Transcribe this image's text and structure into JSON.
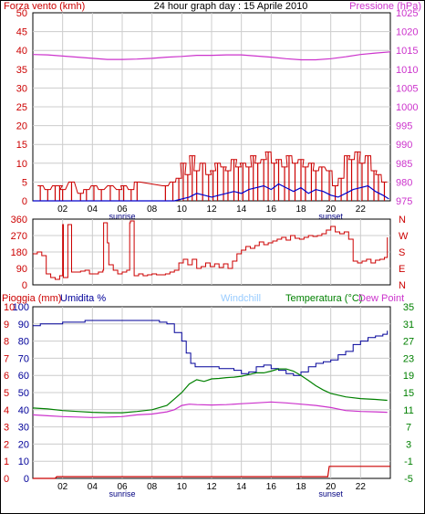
{
  "colors": {
    "frame": "#000000",
    "grid": "#cccccc",
    "wind": "#cc0000",
    "wind_avg": "#0000cc",
    "pressure": "#cc33cc",
    "direction": "#cc0000",
    "rain": "#cc0000",
    "humidity": "#000099",
    "windchill": "#99ccff",
    "temperature": "#008000",
    "dewpoint": "#cc33cc"
  },
  "header": {
    "wind_label": "Forza vento (kmh)",
    "title": "24 hour graph day : 15 Aprile 2010",
    "pressure_label": "Pressione (hPa)"
  },
  "bottom_header": {
    "rain_label": "Pioggia (mm)",
    "humidity_label": "Umidita %",
    "windchill_label": "Windchill",
    "temp_label": "Temperatura (°C)",
    "dew_label": "Dew Point"
  },
  "x_ticks": [
    "02",
    "04",
    "06",
    "08",
    "10",
    "12",
    "14",
    "16",
    "18",
    "20",
    "22"
  ],
  "sun_labels": {
    "sunrise": "sunrise",
    "sunset": "sunset"
  },
  "chart_data": [
    {
      "type": "line",
      "title": "24 hour graph day : 15 Aprile 2010",
      "xlabel": "",
      "x_unit": "hour",
      "xlim": [
        0,
        24
      ],
      "left_axis": {
        "label": "Forza vento (kmh)",
        "ylim": [
          0,
          50
        ],
        "ticks": [
          "0",
          "5",
          "10",
          "15",
          "20",
          "25",
          "30",
          "35",
          "40",
          "45",
          "50"
        ]
      },
      "right_axis": {
        "label": "Pressione (hPa)",
        "ylim": [
          975,
          1025
        ],
        "ticks": [
          "975",
          "980",
          "985",
          "990",
          "995",
          "1000",
          "1005",
          "1010",
          "1015",
          "1020",
          "1025"
        ]
      },
      "series": [
        {
          "name": "Forza vento (kmh)",
          "axis": "left",
          "style": "gust-bars",
          "x": [
            0.5,
            1.0,
            1.5,
            1.8,
            2.0,
            2.6,
            3.2,
            3.6,
            4.1,
            4.6,
            5.2,
            5.8,
            6.1,
            6.6,
            7.0,
            8.9,
            9.4,
            9.8,
            10.1,
            10.4,
            10.7,
            11.0,
            11.4,
            11.8,
            12.1,
            12.4,
            12.8,
            13.1,
            13.5,
            13.8,
            14.1,
            14.5,
            14.8,
            15.1,
            15.5,
            15.8,
            16.2,
            16.5,
            16.9,
            17.2,
            17.6,
            18.0,
            18.3,
            18.7,
            19.0,
            19.4,
            19.9,
            20.3,
            20.7,
            21.1,
            21.4,
            21.8,
            22.1,
            22.5,
            22.9,
            23.2,
            23.6
          ],
          "values": [
            4,
            3,
            4,
            4,
            3,
            5,
            2,
            3,
            4,
            3,
            4,
            3,
            4,
            3,
            5,
            4,
            5,
            6,
            10,
            7,
            12,
            8,
            10,
            7,
            8,
            10,
            9,
            8,
            11,
            9,
            10,
            9,
            12,
            10,
            11,
            13,
            10,
            11,
            9,
            12,
            10,
            11,
            9,
            10,
            8,
            9,
            8,
            4,
            6,
            12,
            11,
            13,
            10,
            12,
            8,
            7,
            5
          ]
        },
        {
          "name": "Vento medio",
          "axis": "left",
          "x": [
            0,
            2,
            4,
            6,
            8,
            9.5,
            10,
            10.5,
            11,
            11.5,
            12,
            12.5,
            13,
            13.5,
            14,
            14.5,
            15,
            15.5,
            16,
            16.5,
            17,
            17.5,
            18,
            18.5,
            19,
            19.5,
            20,
            20.5,
            21,
            21.5,
            22,
            22.5,
            23,
            23.5,
            23.9
          ],
          "values": [
            0,
            0,
            0,
            0,
            0,
            0,
            0.5,
            1,
            2,
            1.5,
            1,
            1.5,
            2,
            2.5,
            2,
            3,
            3.5,
            4,
            3,
            4.5,
            3.5,
            2.5,
            3.5,
            2,
            3,
            2.5,
            1.5,
            1,
            2,
            3,
            3.5,
            4,
            2.5,
            1.5,
            0.5
          ]
        },
        {
          "name": "Pressione (hPa)",
          "axis": "right",
          "x": [
            0,
            1,
            2,
            3,
            4,
            5,
            6,
            7,
            8,
            9,
            10,
            11,
            12,
            13,
            14,
            15,
            16,
            17,
            18,
            19,
            20,
            21,
            22,
            23,
            24
          ],
          "values": [
            1013.9,
            1013.8,
            1013.5,
            1013.2,
            1012.9,
            1012.6,
            1012.6,
            1012.7,
            1012.9,
            1013.2,
            1013.4,
            1013.7,
            1013.7,
            1013.8,
            1013.8,
            1013.5,
            1013.2,
            1012.8,
            1012.5,
            1012.5,
            1012.8,
            1013.3,
            1013.9,
            1014.3,
            1014.6
          ]
        }
      ]
    },
    {
      "type": "line",
      "xlim": [
        0,
        24
      ],
      "left_axis": {
        "ylim": [
          0,
          360
        ],
        "ticks": [
          "0",
          "90",
          "180",
          "270",
          "360"
        ]
      },
      "right_axis": {
        "ticks": [
          "N",
          "E",
          "S",
          "W",
          "N"
        ]
      },
      "series": [
        {
          "name": "Direzione vento",
          "x": [
            0,
            0.3,
            0.6,
            0.9,
            1.2,
            1.5,
            1.8,
            2.0,
            2.05,
            2.3,
            2.35,
            2.6,
            2.9,
            3.2,
            3.5,
            3.8,
            4.1,
            4.4,
            4.7,
            4.75,
            5.0,
            5.1,
            5.4,
            5.7,
            6.0,
            6.3,
            6.5,
            6.55,
            6.8,
            7.1,
            7.4,
            7.7,
            8.0,
            8.3,
            8.6,
            8.9,
            9.2,
            9.5,
            9.8,
            10.1,
            10.4,
            10.7,
            11.0,
            11.3,
            11.6,
            11.9,
            12.2,
            12.5,
            12.8,
            13.1,
            13.4,
            13.7,
            14.0,
            14.3,
            14.6,
            14.9,
            15.2,
            15.5,
            15.8,
            16.1,
            16.4,
            16.7,
            17.0,
            17.3,
            17.6,
            17.9,
            18.2,
            18.5,
            18.8,
            19.1,
            19.4,
            19.7,
            20.0,
            20.3,
            20.6,
            20.9,
            21.2,
            21.5,
            21.8,
            22.1,
            22.4,
            22.7,
            23.0,
            23.3,
            23.6,
            23.8
          ],
          "values": [
            170,
            180,
            160,
            60,
            40,
            30,
            50,
            330,
            40,
            40,
            330,
            70,
            70,
            75,
            80,
            60,
            60,
            70,
            80,
            340,
            230,
            110,
            80,
            60,
            70,
            80,
            340,
            350,
            50,
            60,
            50,
            55,
            60,
            55,
            55,
            60,
            70,
            80,
            120,
            140,
            110,
            140,
            90,
            100,
            120,
            100,
            115,
            95,
            115,
            90,
            130,
            170,
            190,
            210,
            200,
            215,
            235,
            220,
            230,
            240,
            250,
            260,
            245,
            270,
            255,
            250,
            260,
            270,
            265,
            270,
            280,
            300,
            320,
            290,
            280,
            290,
            250,
            130,
            120,
            130,
            140,
            120,
            135,
            140,
            150,
            260
          ]
        }
      ]
    },
    {
      "type": "line",
      "xlim": [
        0,
        24
      ],
      "left_axis": {
        "label": "Pioggia (mm)",
        "ylim": [
          0,
          10
        ],
        "ticks": [
          "0",
          "1",
          "2",
          "3",
          "4",
          "5",
          "6",
          "7",
          "8",
          "9",
          "10"
        ]
      },
      "left_axis_2": {
        "label": "Umidita %",
        "ylim": [
          0,
          100
        ],
        "ticks": [
          "0",
          "10",
          "20",
          "30",
          "40",
          "50",
          "60",
          "70",
          "80",
          "90",
          "100"
        ]
      },
      "right_axis": {
        "label": "Temperatura (°C)",
        "ylim": [
          -5,
          35
        ],
        "ticks": [
          "-5",
          "-1",
          "3",
          "7",
          "11",
          "15",
          "19",
          "23",
          "27",
          "31",
          "35"
        ]
      },
      "series": [
        {
          "name": "Pioggia (mm)",
          "axis": "left",
          "x": [
            0,
            1.5,
            1.6,
            19.8,
            19.9,
            24
          ],
          "values": [
            0,
            0,
            0.1,
            0.1,
            0.7,
            0.7
          ]
        },
        {
          "name": "Umidita %",
          "axis": "left2",
          "x": [
            0,
            0.5,
            1,
            1.5,
            2,
            3,
            3.5,
            4,
            5,
            6,
            7,
            8,
            8.5,
            9,
            9.5,
            10,
            10.3,
            10.6,
            10.9,
            11.5,
            12,
            12.5,
            13,
            13.5,
            14,
            14.5,
            15,
            15.5,
            16,
            16.5,
            17,
            17.5,
            18,
            18.5,
            19,
            19.5,
            20,
            20.5,
            21,
            21.5,
            22,
            22.5,
            23,
            23.5,
            23.8
          ],
          "values": [
            89,
            90,
            90,
            90,
            91,
            91,
            92,
            92,
            92,
            92,
            92,
            92,
            91,
            90,
            85,
            80,
            73,
            67,
            65,
            65,
            65,
            64,
            64,
            63,
            61,
            62,
            65,
            66,
            64,
            63,
            61,
            60,
            62,
            65,
            67,
            68,
            69,
            72,
            74,
            78,
            80,
            82,
            83,
            84,
            86
          ]
        },
        {
          "name": "Temperatura (°C)",
          "axis": "right",
          "x": [
            0,
            1,
            2,
            3,
            4,
            5,
            6,
            7,
            8,
            9,
            9.5,
            10,
            10.5,
            11,
            11.5,
            12,
            12.5,
            13,
            13.5,
            14,
            14.5,
            15,
            15.5,
            16,
            16.5,
            17,
            17.5,
            18,
            18.5,
            19,
            19.5,
            20,
            21,
            22,
            23,
            23.8
          ],
          "values": [
            11.4,
            11.2,
            10.8,
            10.6,
            10.4,
            10.3,
            10.3,
            10.6,
            11,
            12,
            13.5,
            15,
            17,
            18,
            17.6,
            18.2,
            18.3,
            18.5,
            18.6,
            18.8,
            19.2,
            19.6,
            19.6,
            20,
            20.5,
            20.5,
            20,
            19,
            17.8,
            16.6,
            15.6,
            14.8,
            14,
            13.6,
            13.4,
            13.2
          ]
        },
        {
          "name": "Dew Point",
          "axis": "right",
          "x": [
            0,
            1,
            2,
            3,
            4,
            5,
            6,
            7,
            8,
            9,
            9.5,
            10,
            10.5,
            11,
            12,
            13,
            14,
            15,
            16,
            17,
            18,
            19,
            20,
            21,
            22,
            23,
            23.8
          ],
          "values": [
            9.8,
            9.6,
            9.4,
            9.3,
            9.2,
            9.3,
            9.4,
            9.8,
            10,
            10.5,
            11,
            12,
            12.3,
            12.2,
            12.1,
            12.2,
            12.4,
            12.6,
            12.8,
            12.6,
            12.3,
            12,
            11.5,
            10.8,
            10.6,
            10.5,
            10.4
          ]
        }
      ]
    }
  ]
}
